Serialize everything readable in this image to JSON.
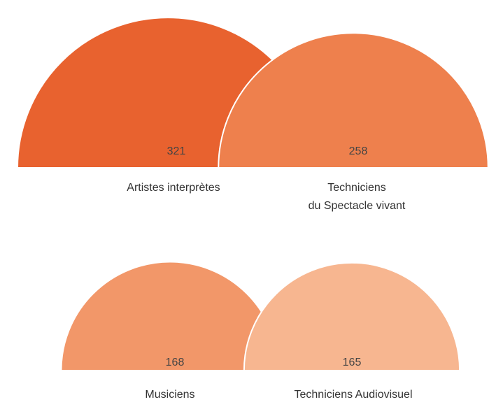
{
  "chart_data": {
    "type": "semicircle",
    "categories": [
      "Artistes interprètes",
      "Techniciens\ndu Spectacle vivant",
      "Musiciens",
      "Techniciens Audiovisuel"
    ],
    "values": [
      321,
      258,
      168,
      165
    ],
    "colors": [
      "#e8622f",
      "#ee804d",
      "#f29769",
      "#f7b690"
    ]
  }
}
